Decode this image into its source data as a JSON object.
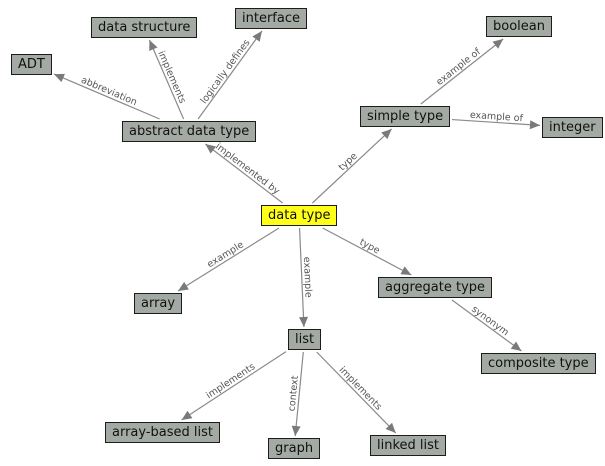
{
  "colors": {
    "node_fill": "#a3aaa4",
    "center_fill": "#ffff1a",
    "node_border": "#1c1c1c",
    "edge": "#8a8a8a",
    "edge_label": "#555555"
  },
  "nodes": {
    "data_type": "data type",
    "data_structure": "data structure",
    "interface": "interface",
    "adt": "ADT",
    "abstract_data_type": "abstract data type",
    "boolean": "boolean",
    "simple_type": "simple type",
    "integer": "integer",
    "array": "array",
    "aggregate_type": "aggregate type",
    "list": "list",
    "composite_type": "composite type",
    "array_based_list": "array-based list",
    "graph": "graph",
    "linked_list": "linked list"
  },
  "edges": [
    {
      "from": "abstract_data_type",
      "to": "data_structure",
      "label": "implements"
    },
    {
      "from": "abstract_data_type",
      "to": "interface",
      "label": "logically defines"
    },
    {
      "from": "abstract_data_type",
      "to": "adt",
      "label": "abbreviation"
    },
    {
      "from": "data_type",
      "to": "abstract_data_type",
      "label": "implemented by"
    },
    {
      "from": "data_type",
      "to": "simple_type",
      "label": "type"
    },
    {
      "from": "simple_type",
      "to": "boolean",
      "label": "example of"
    },
    {
      "from": "simple_type",
      "to": "integer",
      "label": "example of"
    },
    {
      "from": "data_type",
      "to": "array",
      "label": "example"
    },
    {
      "from": "data_type",
      "to": "list",
      "label": "example"
    },
    {
      "from": "data_type",
      "to": "aggregate_type",
      "label": "type"
    },
    {
      "from": "aggregate_type",
      "to": "composite_type",
      "label": "synonym"
    },
    {
      "from": "list",
      "to": "array_based_list",
      "label": "implements"
    },
    {
      "from": "list",
      "to": "graph",
      "label": "context"
    },
    {
      "from": "list",
      "to": "linked_list",
      "label": "implements"
    }
  ]
}
